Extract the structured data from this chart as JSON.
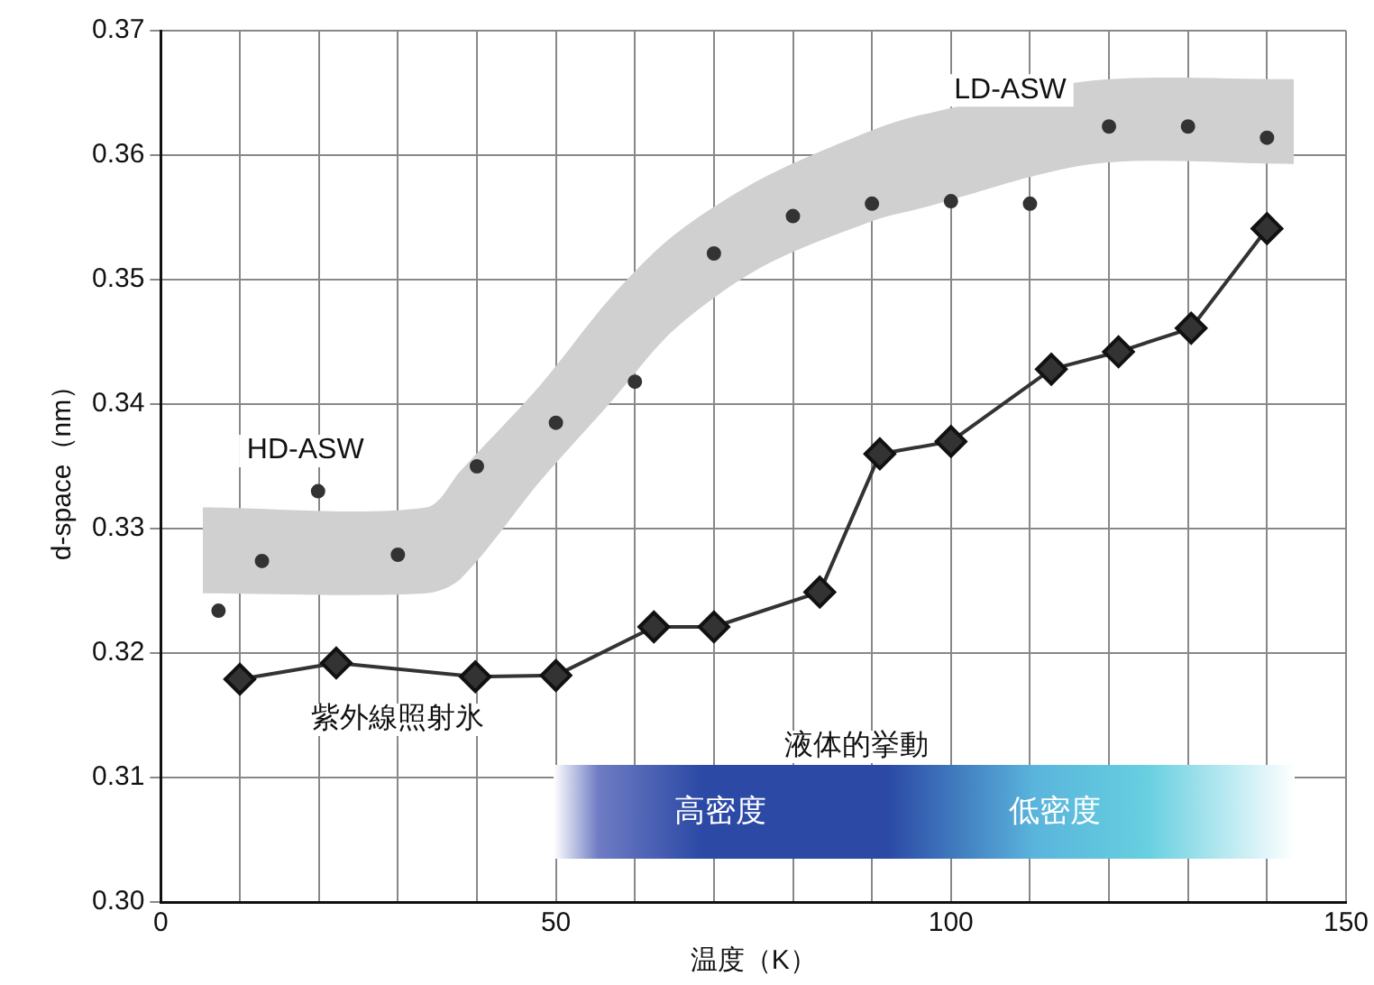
{
  "chart_data": {
    "type": "line",
    "xlabel": "温度（K）",
    "ylabel": "d-space（nm）",
    "xlim": [
      0,
      150
    ],
    "xticks": [
      {
        "value": 0,
        "label": "0"
      },
      {
        "value": 10,
        "label": null
      },
      {
        "value": 20,
        "label": null
      },
      {
        "value": 30,
        "label": null
      },
      {
        "value": 40,
        "label": null
      },
      {
        "value": 50,
        "label": "50"
      },
      {
        "value": 60,
        "label": null
      },
      {
        "value": 70,
        "label": null
      },
      {
        "value": 80,
        "label": null
      },
      {
        "value": 90,
        "label": null
      },
      {
        "value": 100,
        "label": "100"
      },
      {
        "value": 110,
        "label": null
      },
      {
        "value": 120,
        "label": null
      },
      {
        "value": 130,
        "label": null
      },
      {
        "value": 140,
        "label": null
      },
      {
        "value": 150,
        "label": "150"
      }
    ],
    "ylim": [
      0.3,
      0.37
    ],
    "yticks": [
      {
        "value": 0.3,
        "label": "0.30"
      },
      {
        "value": 0.31,
        "label": "0.31"
      },
      {
        "value": 0.32,
        "label": "0.32"
      },
      {
        "value": 0.33,
        "label": "0.33"
      },
      {
        "value": 0.34,
        "label": "0.34"
      },
      {
        "value": 0.35,
        "label": "0.35"
      },
      {
        "value": 0.36,
        "label": "0.36"
      },
      {
        "value": 0.37,
        "label": "0.37"
      }
    ],
    "grid": true,
    "legend": false,
    "series": [
      {
        "type": "area",
        "color": "#d0d0d0",
        "x": [
          5.3,
          33.6,
          38,
          48,
          57,
          65,
          76,
          90,
          96,
          118,
          143.4
        ],
        "values": [
          null,
          null,
          null,
          null,
          null,
          null,
          null,
          null,
          null,
          null,
          null
        ],
        "lower": [
          0.3248,
          0.3248,
          0.326,
          0.3338,
          0.3402,
          0.346,
          0.351,
          0.3547,
          0.3557,
          0.3593,
          0.3593
        ],
        "upper": [
          0.3317,
          0.3317,
          0.3347,
          0.3415,
          0.3486,
          0.3536,
          0.3581,
          0.362,
          0.3632,
          0.366,
          0.3661
        ]
      },
      {
        "type": "scatter",
        "color": "#333333",
        "marker": "circle",
        "x": [
          7.3,
          12.8,
          19.9,
          30,
          40,
          50,
          60,
          70,
          80,
          90,
          100,
          110,
          120,
          130,
          140
        ],
        "values": [
          0.3234,
          0.3274,
          0.333,
          0.3279,
          0.335,
          0.3385,
          0.3418,
          0.3521,
          0.3551,
          0.3561,
          0.3563,
          0.3561,
          0.3623,
          0.3623,
          0.3614
        ]
      },
      {
        "type": "line",
        "color": "#333333",
        "marker": "diamond",
        "line_style": "solid",
        "x": [
          10,
          22.2,
          39.8,
          50,
          62.4,
          70,
          83.4,
          91,
          100,
          112.7,
          121.2,
          130.4,
          140
        ],
        "values": [
          0.3179,
          0.3192,
          0.3181,
          0.3182,
          0.3221,
          0.3221,
          0.3249,
          0.336,
          0.337,
          0.3428,
          0.3442,
          0.3461,
          0.3541
        ]
      }
    ],
    "annotations": [
      "HD-ASW",
      {
        "text": "LD-ASW",
        "x": 107.5,
        "y": 0.3652
      },
      "紫外線照射氷",
      "液体的挙動",
      "高密度",
      "低密度"
    ]
  }
}
